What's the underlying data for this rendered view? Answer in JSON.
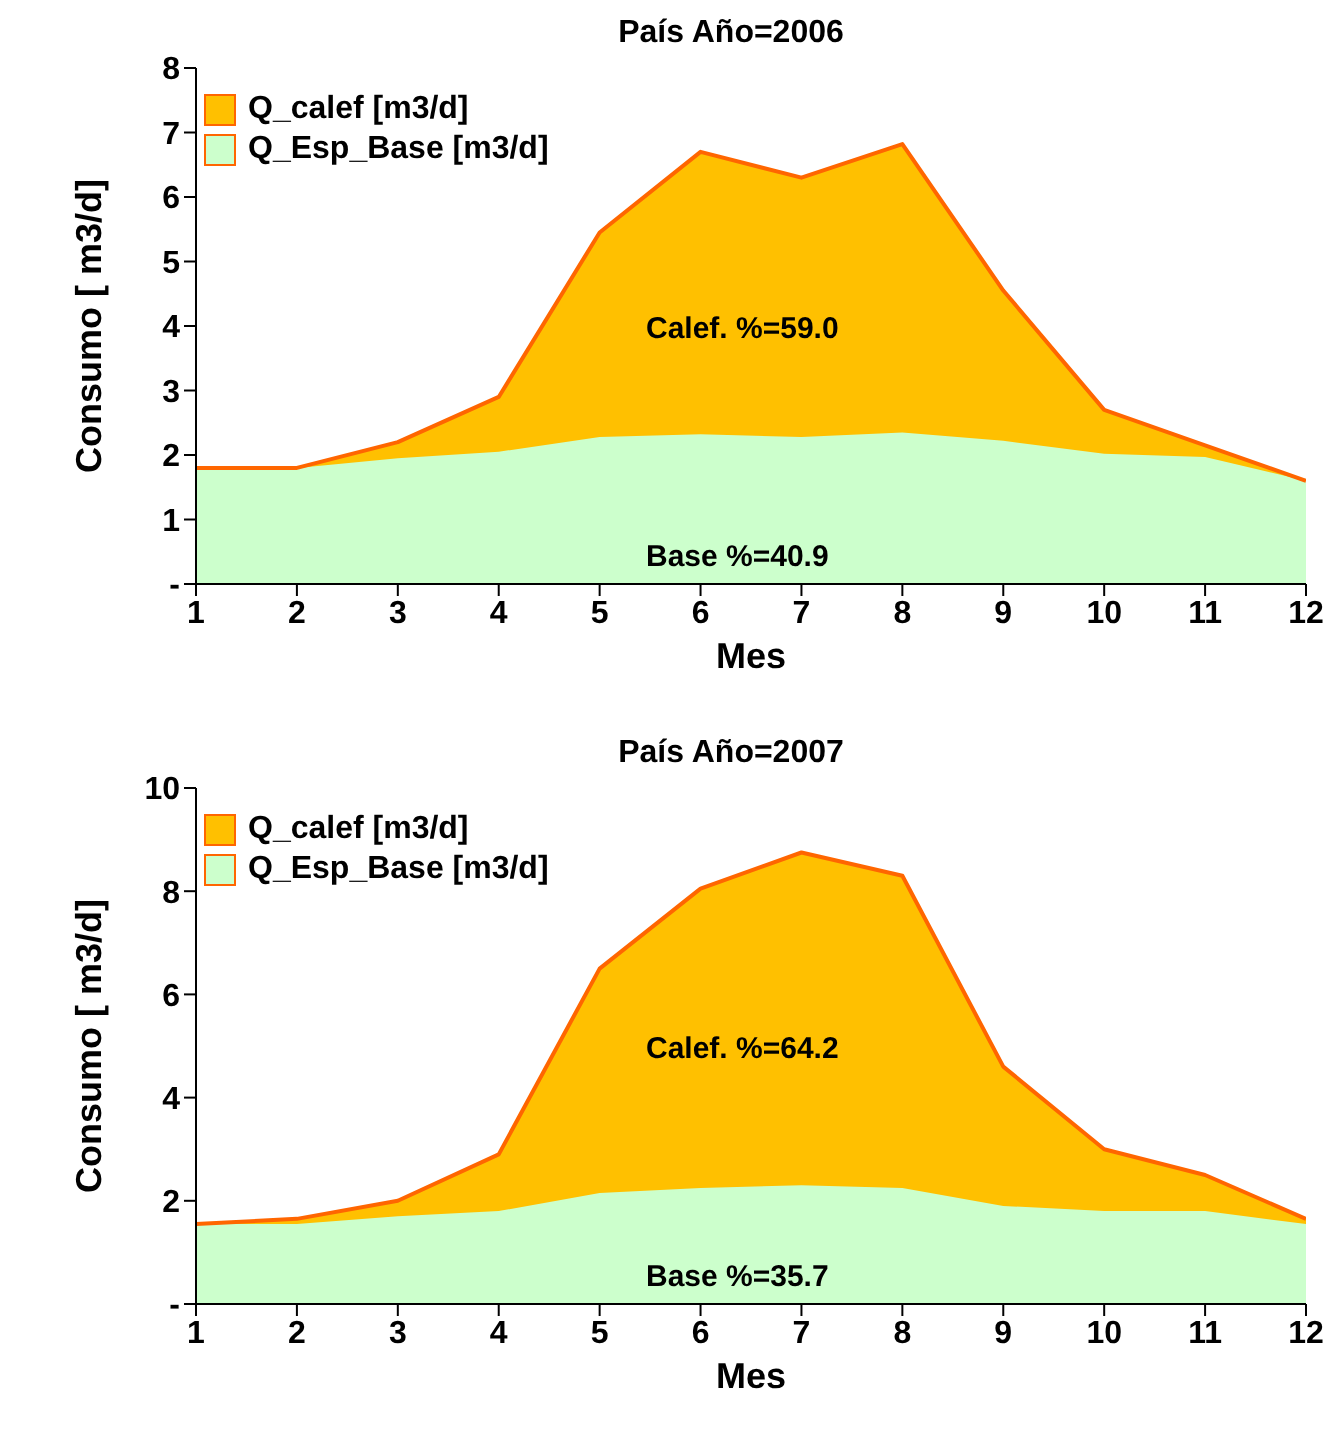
{
  "chart_data": [
    {
      "type": "area",
      "title": "País  Año=2006",
      "xlabel": "Mes",
      "ylabel": "Consumo [ m3/d]",
      "stacked": true,
      "legend": "top left",
      "grid": false,
      "x": [
        1,
        2,
        3,
        4,
        5,
        6,
        7,
        8,
        9,
        10,
        11,
        12
      ],
      "xlim": [
        1,
        12
      ],
      "xticks": [
        1,
        2,
        3,
        4,
        5,
        6,
        7,
        8,
        9,
        10,
        11,
        12
      ],
      "ylim": [
        0,
        8
      ],
      "yticks": [
        {
          "value": 0,
          "label": "-"
        },
        1,
        2,
        3,
        4,
        5,
        6,
        7,
        8
      ],
      "series": [
        {
          "name": "Q_Esp_Base [m3/d]",
          "color": "#ccffcc",
          "values": [
            1.8,
            1.8,
            1.95,
            2.05,
            2.28,
            2.32,
            2.28,
            2.35,
            2.22,
            2.02,
            1.97,
            1.6
          ]
        },
        {
          "name": "Q_calef [m3/d]",
          "color": "#ffc000",
          "values": [
            0,
            0,
            0.25,
            0.85,
            3.17,
            4.38,
            4.02,
            4.47,
            2.33,
            0.68,
            0.18,
            0
          ]
        }
      ],
      "annotations": [
        "Calef. %=59.0",
        "Base %=40.9"
      ]
    },
    {
      "type": "area",
      "title": "País  Año=2007",
      "xlabel": "Mes",
      "ylabel": "Consumo [ m3/d]",
      "stacked": true,
      "legend": "top left",
      "grid": false,
      "x": [
        1,
        2,
        3,
        4,
        5,
        6,
        7,
        8,
        9,
        10,
        11,
        12
      ],
      "xlim": [
        1,
        12
      ],
      "xticks": [
        1,
        2,
        3,
        4,
        5,
        6,
        7,
        8,
        9,
        10,
        11,
        12
      ],
      "ylim": [
        0,
        10
      ],
      "yticks": [
        {
          "value": 0,
          "label": "-"
        },
        2,
        4,
        6,
        8,
        10
      ],
      "series": [
        {
          "name": "Q_Esp_Base [m3/d]",
          "color": "#ccffcc",
          "values": [
            1.55,
            1.55,
            1.7,
            1.8,
            2.15,
            2.25,
            2.3,
            2.25,
            1.9,
            1.8,
            1.8,
            1.55
          ]
        },
        {
          "name": "Q_calef [m3/d]",
          "color": "#ffc000",
          "values": [
            0,
            0.1,
            0.3,
            1.1,
            4.35,
            5.8,
            6.45,
            6.05,
            2.7,
            1.2,
            0.7,
            0.1
          ]
        }
      ],
      "annotations": [
        "Calef. %=64.2",
        "Base %=35.7"
      ]
    }
  ]
}
